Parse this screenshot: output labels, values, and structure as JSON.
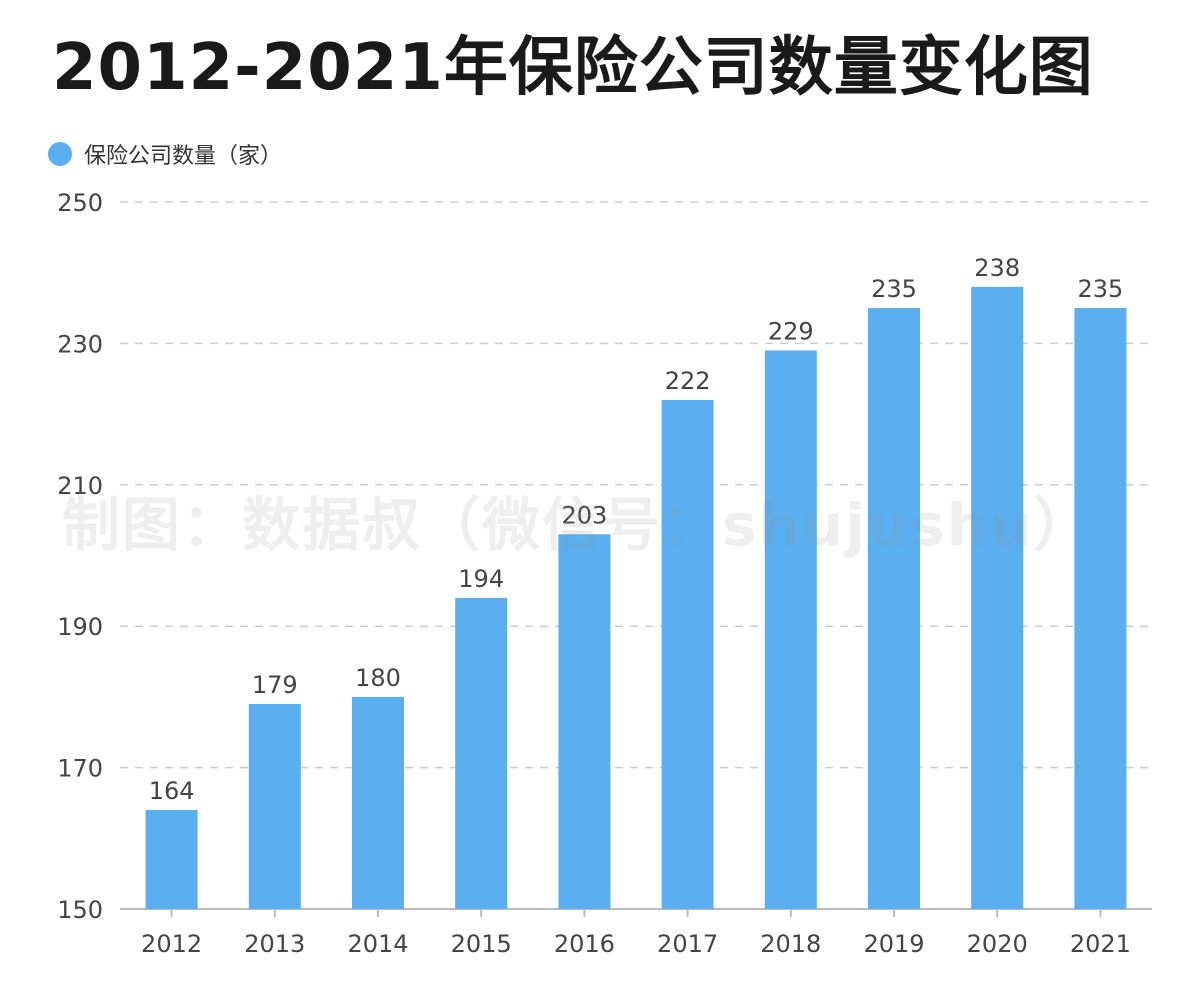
{
  "chart_data": {
    "type": "bar",
    "title": "2012-2021年保险公司数量变化图",
    "legend": [
      "保险公司数量（家）"
    ],
    "legend_position": "top-left",
    "categories": [
      "2012",
      "2013",
      "2014",
      "2015",
      "2016",
      "2017",
      "2018",
      "2019",
      "2020",
      "2021"
    ],
    "series": [
      {
        "name": "保险公司数量（家）",
        "values": [
          164,
          179,
          180,
          194,
          203,
          222,
          229,
          235,
          238,
          235
        ]
      }
    ],
    "y_ticks": [
      "150",
      "170",
      "190",
      "210",
      "230",
      "250"
    ],
    "ylim": [
      150,
      250
    ],
    "grid": true,
    "bar_color": "#5aaff0",
    "gridline_color": "#cccccc"
  },
  "watermark": "制图：数据叔（微信号：shujushu）"
}
